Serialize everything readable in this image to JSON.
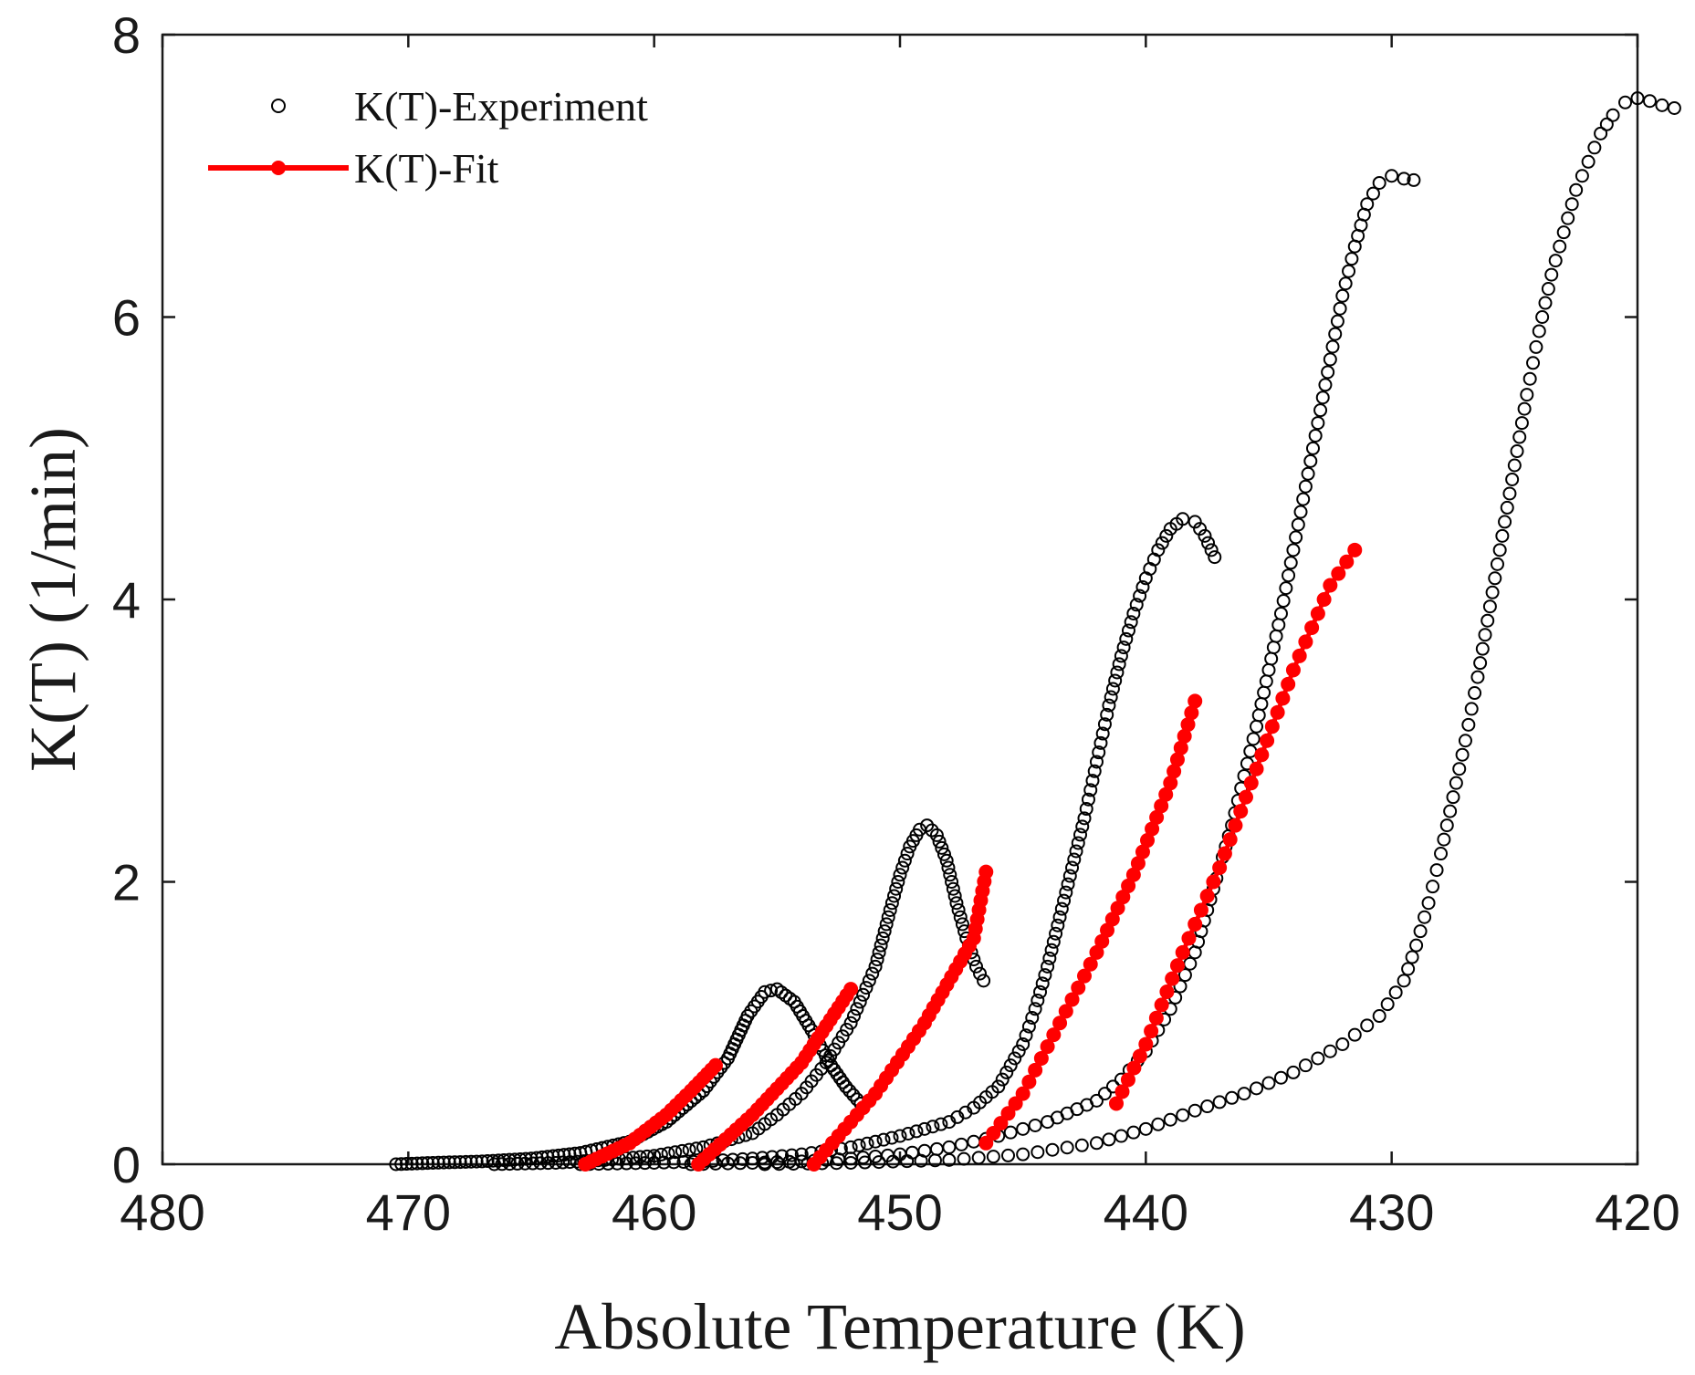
{
  "chart_data": {
    "type": "scatter",
    "xlabel": "Absolute Temperature (K)",
    "ylabel": "K(T) (1/min)",
    "xlim": [
      480,
      420
    ],
    "ylim": [
      0,
      8
    ],
    "x_reversed": true,
    "xticks": [
      480,
      470,
      460,
      450,
      440,
      430,
      420
    ],
    "yticks": [
      0,
      2,
      4,
      6,
      8
    ],
    "grid": false,
    "legend_position": "top-left",
    "legend": [
      {
        "label": "K(T)-Experiment",
        "marker": "open-circle",
        "color": "#000000"
      },
      {
        "label": "K(T)-Fit",
        "marker": "filled-circle-line",
        "color": "#ff0000"
      }
    ],
    "colors": {
      "experiment": "#000000",
      "fit": "#ff0000",
      "axes": "#1a1a1a"
    },
    "experiment_series": [
      {
        "points": [
          [
            470.5,
            0.0
          ],
          [
            469,
            0.01
          ],
          [
            467,
            0.02
          ],
          [
            465,
            0.04
          ],
          [
            463,
            0.08
          ],
          [
            461,
            0.16
          ],
          [
            459.5,
            0.3
          ],
          [
            458,
            0.52
          ],
          [
            457,
            0.75
          ],
          [
            456.2,
            1.05
          ],
          [
            455.5,
            1.22
          ],
          [
            455.0,
            1.24
          ],
          [
            454.3,
            1.15
          ],
          [
            453.6,
            0.95
          ],
          [
            452.8,
            0.7
          ],
          [
            452.2,
            0.55
          ],
          [
            451.6,
            0.43
          ]
        ]
      },
      {
        "points": [
          [
            466.5,
            0.0
          ],
          [
            464,
            0.01
          ],
          [
            462,
            0.03
          ],
          [
            460,
            0.06
          ],
          [
            458,
            0.12
          ],
          [
            456,
            0.22
          ],
          [
            455,
            0.35
          ],
          [
            454,
            0.5
          ],
          [
            453,
            0.72
          ],
          [
            452,
            1.0
          ],
          [
            451,
            1.4
          ],
          [
            450.4,
            1.8
          ],
          [
            450,
            2.05
          ],
          [
            449.6,
            2.25
          ],
          [
            449.2,
            2.37
          ],
          [
            448.9,
            2.4
          ],
          [
            448.5,
            2.33
          ],
          [
            448.1,
            2.15
          ],
          [
            447.7,
            1.85
          ],
          [
            447.3,
            1.6
          ],
          [
            446.9,
            1.4
          ],
          [
            446.6,
            1.3
          ]
        ]
      },
      {
        "points": [
          [
            463,
            0.0
          ],
          [
            460,
            0.01
          ],
          [
            458,
            0.02
          ],
          [
            456,
            0.04
          ],
          [
            454,
            0.07
          ],
          [
            452,
            0.12
          ],
          [
            450,
            0.2
          ],
          [
            448,
            0.3
          ],
          [
            447,
            0.4
          ],
          [
            446,
            0.55
          ],
          [
            445.5,
            0.7
          ],
          [
            445,
            0.85
          ],
          [
            444.5,
            1.1
          ],
          [
            444,
            1.4
          ],
          [
            443.5,
            1.75
          ],
          [
            443,
            2.1
          ],
          [
            442.5,
            2.45
          ],
          [
            442,
            2.85
          ],
          [
            441.5,
            3.25
          ],
          [
            441,
            3.6
          ],
          [
            440.5,
            3.9
          ],
          [
            440,
            4.15
          ],
          [
            439.5,
            4.35
          ],
          [
            439,
            4.5
          ],
          [
            438.5,
            4.57
          ],
          [
            438,
            4.55
          ],
          [
            437.6,
            4.45
          ],
          [
            437.2,
            4.3
          ]
        ]
      },
      {
        "points": [
          [
            458.5,
            0.0
          ],
          [
            456,
            0.01
          ],
          [
            454,
            0.02
          ],
          [
            452,
            0.04
          ],
          [
            450,
            0.07
          ],
          [
            448,
            0.12
          ],
          [
            446,
            0.2
          ],
          [
            444,
            0.3
          ],
          [
            442,
            0.45
          ],
          [
            441,
            0.6
          ],
          [
            440,
            0.8
          ],
          [
            439,
            1.1
          ],
          [
            438,
            1.5
          ],
          [
            437.5,
            1.8
          ],
          [
            437,
            2.1
          ],
          [
            436.5,
            2.4
          ],
          [
            436,
            2.75
          ],
          [
            435.5,
            3.1
          ],
          [
            435,
            3.5
          ],
          [
            434.5,
            3.9
          ],
          [
            434,
            4.35
          ],
          [
            433.5,
            4.8
          ],
          [
            433,
            5.25
          ],
          [
            432.5,
            5.7
          ],
          [
            432,
            6.15
          ],
          [
            431.5,
            6.5
          ],
          [
            431,
            6.8
          ],
          [
            430.5,
            6.95
          ],
          [
            430,
            7.0
          ],
          [
            429.5,
            6.98
          ],
          [
            429.1,
            6.97
          ]
        ]
      },
      {
        "points": [
          [
            455.5,
            0.0
          ],
          [
            452,
            0.01
          ],
          [
            448,
            0.03
          ],
          [
            445,
            0.07
          ],
          [
            442,
            0.15
          ],
          [
            440,
            0.25
          ],
          [
            438,
            0.38
          ],
          [
            436,
            0.5
          ],
          [
            434,
            0.65
          ],
          [
            432,
            0.85
          ],
          [
            430.5,
            1.05
          ],
          [
            429.5,
            1.3
          ],
          [
            429,
            1.55
          ],
          [
            428.5,
            1.85
          ],
          [
            428,
            2.2
          ],
          [
            427.5,
            2.6
          ],
          [
            427,
            3.0
          ],
          [
            426.5,
            3.45
          ],
          [
            426,
            3.95
          ],
          [
            425.5,
            4.45
          ],
          [
            425,
            4.95
          ],
          [
            424.5,
            5.45
          ],
          [
            424,
            5.9
          ],
          [
            423.5,
            6.3
          ],
          [
            423,
            6.6
          ],
          [
            422.5,
            6.9
          ],
          [
            422,
            7.1
          ],
          [
            421.5,
            7.3
          ],
          [
            421,
            7.43
          ],
          [
            420.5,
            7.52
          ],
          [
            420,
            7.55
          ],
          [
            419.5,
            7.53
          ],
          [
            419,
            7.5
          ],
          [
            418.5,
            7.48
          ]
        ]
      }
    ],
    "fit_series": [
      {
        "points": [
          [
            462.8,
            0.0
          ],
          [
            461,
            0.15
          ],
          [
            459.5,
            0.35
          ],
          [
            458.5,
            0.52
          ],
          [
            457.5,
            0.7
          ]
        ]
      },
      {
        "points": [
          [
            458.2,
            0.0
          ],
          [
            456,
            0.35
          ],
          [
            454,
            0.72
          ],
          [
            452,
            1.24
          ]
        ]
      },
      {
        "points": [
          [
            453.5,
            0.0
          ],
          [
            451,
            0.5
          ],
          [
            449,
            1.0
          ],
          [
            447,
            1.6
          ],
          [
            446.5,
            2.07
          ]
        ]
      },
      {
        "points": [
          [
            446.5,
            0.15
          ],
          [
            445,
            0.5
          ],
          [
            443.5,
            1.0
          ],
          [
            442,
            1.5
          ],
          [
            440.5,
            2.05
          ],
          [
            439,
            2.7
          ],
          [
            438,
            3.28
          ]
        ]
      },
      {
        "points": [
          [
            441.2,
            0.43
          ],
          [
            440,
            0.85
          ],
          [
            438.5,
            1.5
          ],
          [
            437,
            2.1
          ],
          [
            435.5,
            2.8
          ],
          [
            434,
            3.5
          ],
          [
            432.5,
            4.1
          ],
          [
            431.5,
            4.35
          ]
        ]
      }
    ]
  }
}
